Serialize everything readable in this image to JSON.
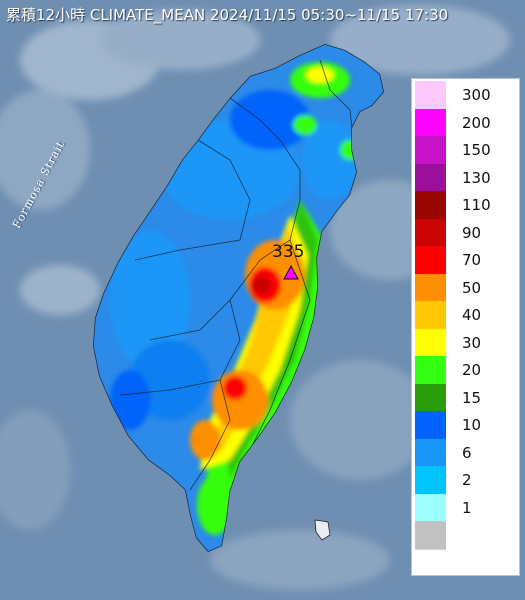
{
  "map": {
    "title": "累積12小時 CLIMATE_MEAN 2024/11/15 05:30~11/15 17:30",
    "strait_label": "Formosa Strait",
    "max_value": "335",
    "colors": {
      "sea": "#6f8fb2",
      "land_base": "#2c8ae8"
    }
  },
  "legend": {
    "items": [
      {
        "label": "300",
        "color": "#fdc9fd"
      },
      {
        "label": "200",
        "color": "#fe04fe"
      },
      {
        "label": "150",
        "color": "#c913c9"
      },
      {
        "label": "130",
        "color": "#9a1099"
      },
      {
        "label": "110",
        "color": "#9a0703"
      },
      {
        "label": "90",
        "color": "#cb0404"
      },
      {
        "label": "70",
        "color": "#fb0201"
      },
      {
        "label": "50",
        "color": "#fe8f01"
      },
      {
        "label": "40",
        "color": "#ffc802"
      },
      {
        "label": "30",
        "color": "#ffff01"
      },
      {
        "label": "20",
        "color": "#34fe11"
      },
      {
        "label": "15",
        "color": "#2a9b09"
      },
      {
        "label": "10",
        "color": "#0163fb"
      },
      {
        "label": "6",
        "color": "#1a96f7"
      },
      {
        "label": "2",
        "color": "#00c5fd"
      },
      {
        "label": "1",
        "color": "#9bfffe"
      },
      {
        "label": "",
        "color": "#c1c1c1"
      }
    ]
  }
}
